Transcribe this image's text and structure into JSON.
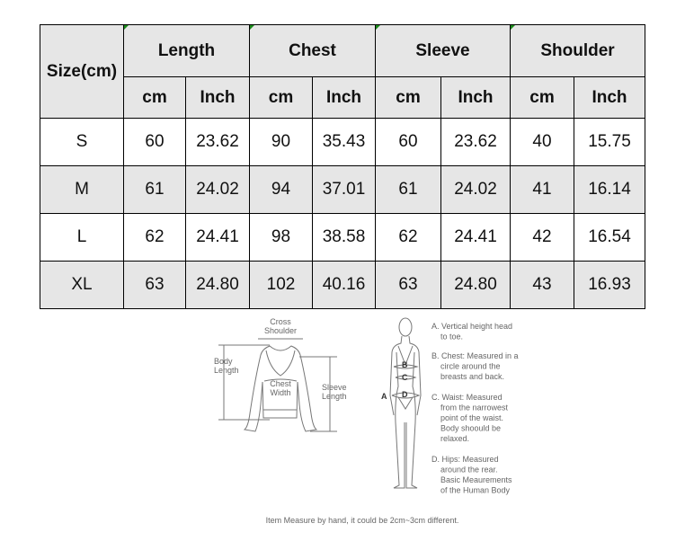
{
  "table": {
    "corner": "Size(cm)",
    "groups": [
      "Length",
      "Chest",
      "Sleeve",
      "Shoulder"
    ],
    "units": [
      "cm",
      "Inch",
      "cm",
      "Inch",
      "cm",
      "Inch",
      "cm",
      "Inch"
    ],
    "rows": [
      {
        "size": "S",
        "values": [
          "60",
          "23.62",
          "90",
          "35.43",
          "60",
          "23.62",
          "40",
          "15.75"
        ]
      },
      {
        "size": "M",
        "values": [
          "61",
          "24.02",
          "94",
          "37.01",
          "61",
          "24.02",
          "41",
          "16.14"
        ]
      },
      {
        "size": "L",
        "values": [
          "62",
          "24.41",
          "98",
          "38.58",
          "62",
          "24.41",
          "42",
          "16.54"
        ]
      },
      {
        "size": "XL",
        "values": [
          "63",
          "24.80",
          "102",
          "40.16",
          "63",
          "24.80",
          "43",
          "16.93"
        ]
      }
    ],
    "header_bg": "#e6e6e6"
  },
  "diagram": {
    "garment": {
      "cross_shoulder": [
        "Cross",
        "Shoulder"
      ],
      "body_length": [
        "Body",
        "Length"
      ],
      "chest_width": [
        "Chest",
        "Width"
      ],
      "sleeve_length": [
        "Sleeve",
        "Length"
      ]
    },
    "body": {
      "markers": [
        "A",
        "B",
        "C",
        "D"
      ],
      "notes": [
        [
          "A. Vertical height head",
          "to toe."
        ],
        [
          "B. Chest: Measured in a",
          "circle around the",
          "breasts and back."
        ],
        [
          "C. Waist: Measured",
          "from the narrowest",
          "point of the waist.",
          "Body shoould be",
          "relaxed."
        ],
        [
          "D. Hips: Measured",
          "around the rear.",
          "Basic Meaurements",
          "of the Human Body"
        ]
      ]
    },
    "footnote": "Item Measure by hand, it could be 2cm~3cm different."
  }
}
